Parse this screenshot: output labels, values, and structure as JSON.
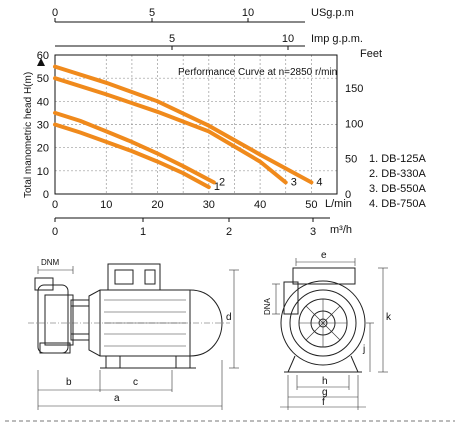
{
  "chart_data": {
    "type": "line",
    "title": "Performance Curve at n=2850 r/min",
    "ylabel": "Total manometric head H(m)",
    "ylabel_right": "Feet",
    "xlabel": "L/min",
    "ylim": [
      0,
      60
    ],
    "xlim": [
      0,
      55
    ],
    "left_ticks": [
      "0",
      "10",
      "20",
      "30",
      "40",
      "50",
      "60"
    ],
    "right_ticks": [
      "0",
      "50",
      "100",
      "150"
    ],
    "x_ticks": [
      "0",
      "10",
      "20",
      "30",
      "40",
      "50"
    ],
    "top_axes": [
      {
        "label": "USg.p.m",
        "ticks": [
          "0",
          "5",
          "10"
        ]
      },
      {
        "label": "Imp g.p.m.",
        "ticks": [
          "5",
          "10"
        ]
      }
    ],
    "bottom_axis": {
      "label": "m³/h",
      "ticks": [
        "0",
        "1",
        "2",
        "3"
      ]
    },
    "legend": [
      "1. DB-125A",
      "2. DB-330A",
      "3. DB-550A",
      "4. DB-750A"
    ],
    "series": [
      {
        "name": "1. DB-125A",
        "marker": "1",
        "color": "#f08a1c",
        "x": [
          0,
          5,
          10,
          15,
          20,
          25,
          30
        ],
        "y": [
          30,
          26.5,
          22.5,
          18.5,
          14,
          9,
          3
        ]
      },
      {
        "name": "2. DB-330A",
        "marker": "2",
        "color": "#f08a1c",
        "x": [
          0,
          5,
          10,
          15,
          20,
          25,
          31
        ],
        "y": [
          35,
          31.5,
          27,
          22.5,
          17.5,
          12,
          5
        ]
      },
      {
        "name": "3. DB-550A",
        "marker": "3",
        "color": "#f08a1c",
        "x": [
          0,
          10,
          20,
          30,
          40,
          45
        ],
        "y": [
          50,
          43,
          35.5,
          27,
          14,
          5
        ]
      },
      {
        "name": "4. DB-750A",
        "marker": "4",
        "color": "#f08a1c",
        "x": [
          0,
          10,
          20,
          30,
          40,
          50
        ],
        "y": [
          55,
          48,
          40,
          29.5,
          17,
          5
        ]
      }
    ]
  },
  "drawing": {
    "side_labels": {
      "dnm": "DNM",
      "a": "a",
      "b": "b",
      "c": "c",
      "d": "d"
    },
    "front_labels": {
      "e": "e",
      "dna": "DNA",
      "k": "k",
      "j": "j",
      "h": "h",
      "g": "g",
      "f": "f"
    }
  }
}
